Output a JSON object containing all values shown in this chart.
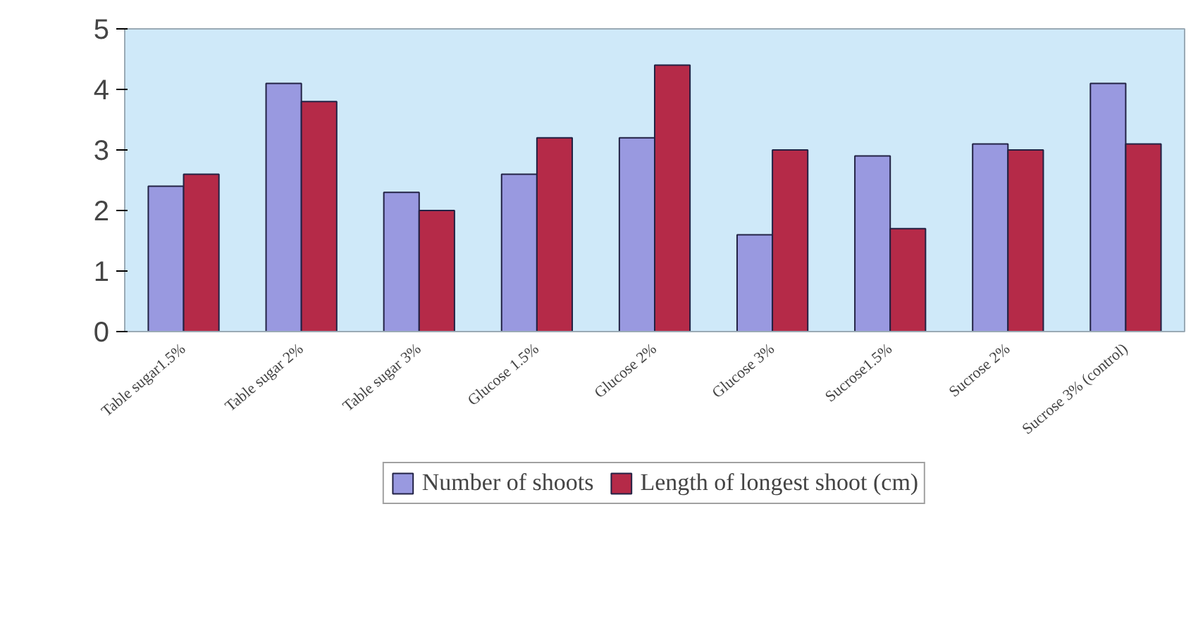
{
  "chart_data": {
    "type": "bar",
    "categories": [
      "Table sugar1.5%",
      "Table sugar 2%",
      "Table sugar 3%",
      "Glucose 1.5%",
      "Glucose 2%",
      "Glucose 3%",
      "Sucrose1.5%",
      "Sucrose 2%",
      "Sucrose 3% (control)"
    ],
    "series": [
      {
        "name": "Number of shoots",
        "color": "#9999e0",
        "values": [
          2.4,
          4.1,
          2.3,
          2.6,
          3.2,
          1.6,
          2.9,
          3.1,
          4.1
        ]
      },
      {
        "name": "Length of longest shoot (cm)",
        "color": "#b52a48",
        "values": [
          2.6,
          3.8,
          2.0,
          3.2,
          4.4,
          3.0,
          1.7,
          3.0,
          3.1
        ]
      }
    ],
    "ylim": [
      0,
      5
    ],
    "yticks": [
      0,
      1,
      2,
      3,
      4,
      5
    ],
    "grid": false,
    "legend": "bottom"
  }
}
